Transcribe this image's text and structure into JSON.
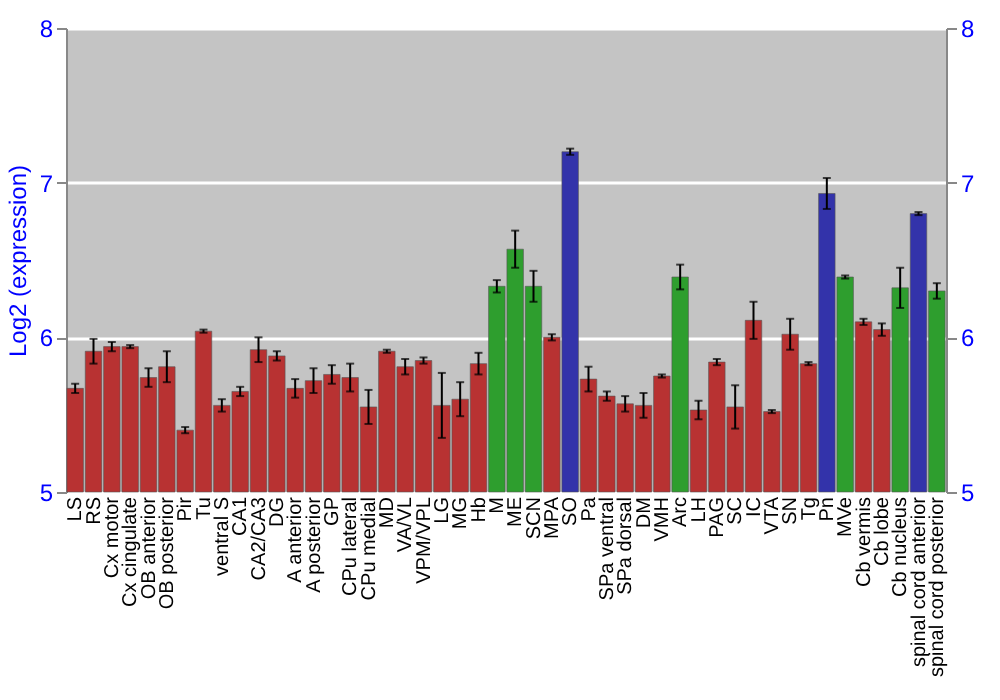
{
  "chart_data": {
    "type": "bar",
    "ylabel": "Log2 (expression)",
    "categories": [
      "LS",
      "RS",
      "Cx motor",
      "Cx cingulate",
      "OB anterior",
      "OB posterior",
      "Pir",
      "Tu",
      "ventral S",
      "CA1",
      "CA2/CA3",
      "DG",
      "A anterior",
      "A posterior",
      "GP",
      "CPu lateral",
      "CPu medial",
      "MD",
      "VA/VL",
      "VPM/VPL",
      "LG",
      "MG",
      "Hb",
      "M",
      "ME",
      "SCN",
      "MPA",
      "SO",
      "Pa",
      "SPa ventral",
      "SPa dorsal",
      "DM",
      "VMH",
      "Arc",
      "LH",
      "PAG",
      "SC",
      "IC",
      "VTA",
      "SN",
      "Tg",
      "Pn",
      "MVe",
      "Cb vermis",
      "Cb lobe",
      "Cb nucleus",
      "spinal cord anterior",
      "spinal cord posterior"
    ],
    "values": [
      5.67,
      5.91,
      5.94,
      5.94,
      5.74,
      5.81,
      5.4,
      6.04,
      5.56,
      5.65,
      5.92,
      5.88,
      5.67,
      5.72,
      5.76,
      5.74,
      5.55,
      5.91,
      5.81,
      5.85,
      5.56,
      5.6,
      5.83,
      6.33,
      6.57,
      6.33,
      6.0,
      7.2,
      5.73,
      5.62,
      5.57,
      5.56,
      5.75,
      6.39,
      5.53,
      5.84,
      5.55,
      6.11,
      5.52,
      6.02,
      5.83,
      6.93,
      6.39,
      6.1,
      6.05,
      6.32,
      6.8,
      6.3
    ],
    "errors": [
      0.03,
      0.08,
      0.03,
      0.01,
      0.06,
      0.1,
      0.02,
      0.01,
      0.04,
      0.03,
      0.08,
      0.03,
      0.06,
      0.08,
      0.06,
      0.09,
      0.11,
      0.01,
      0.05,
      0.02,
      0.21,
      0.11,
      0.07,
      0.04,
      0.12,
      0.1,
      0.02,
      0.02,
      0.08,
      0.03,
      0.05,
      0.08,
      0.01,
      0.08,
      0.06,
      0.02,
      0.14,
      0.12,
      0.01,
      0.1,
      0.01,
      0.1,
      0.01,
      0.02,
      0.04,
      0.13,
      0.01,
      0.05
    ],
    "colors": [
      "#b83232",
      "#b83232",
      "#b83232",
      "#b83232",
      "#b83232",
      "#b83232",
      "#b83232",
      "#b83232",
      "#b83232",
      "#b83232",
      "#b83232",
      "#b83232",
      "#b83232",
      "#b83232",
      "#b83232",
      "#b83232",
      "#b83232",
      "#b83232",
      "#b83232",
      "#b83232",
      "#b83232",
      "#b83232",
      "#b83232",
      "#2e9e2e",
      "#2e9e2e",
      "#2e9e2e",
      "#b83232",
      "#3333aa",
      "#b83232",
      "#b83232",
      "#b83232",
      "#b83232",
      "#b83232",
      "#2e9e2e",
      "#b83232",
      "#b83232",
      "#b83232",
      "#b83232",
      "#b83232",
      "#b83232",
      "#b83232",
      "#3333aa",
      "#2e9e2e",
      "#b83232",
      "#b83232",
      "#2e9e2e",
      "#3333aa",
      "#2e9e2e"
    ],
    "ylim": [
      5,
      8
    ],
    "yticks": [
      5,
      6,
      7,
      8
    ],
    "y2lim": [
      5,
      8
    ],
    "y2ticks": [
      5,
      6,
      7,
      8
    ],
    "grid": "y"
  }
}
